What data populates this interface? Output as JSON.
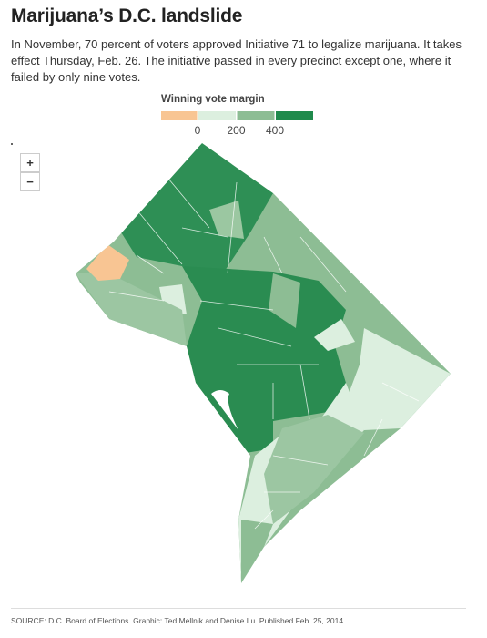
{
  "header": {
    "title": "Marijuana’s D.C. landslide",
    "subtitle": "In November, 70 percent of voters approved Initiative 71 to legalize marijuana. It takes effect Thursday, Feb. 26. The initiative passed in every precinct except one, where it failed by only nine votes."
  },
  "legend": {
    "title": "Winning vote margin",
    "bins": [
      {
        "color": "#f8c593"
      },
      {
        "color": "#dcefdf"
      },
      {
        "color": "#8dbd94"
      },
      {
        "color": "#1f8a4c"
      }
    ],
    "ticks": [
      0,
      200,
      400
    ]
  },
  "zoom": {
    "in": "+",
    "out": "−"
  },
  "source": "SOURCE: D.C. Board of Elections. Graphic: Ted Mellnik and Denise Lu. Published Feb. 25, 2014."
}
